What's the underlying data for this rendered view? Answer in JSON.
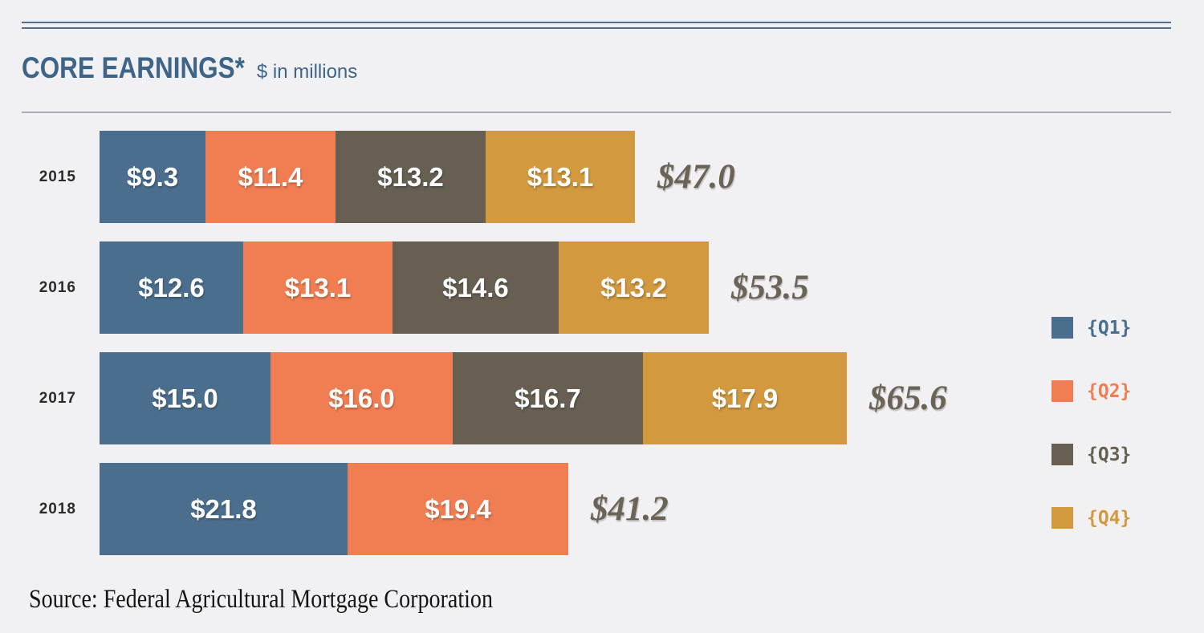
{
  "header": {
    "title": "CORE EARNINGS*",
    "subtitle": "$ in millions",
    "title_color": "#3e6487"
  },
  "chart_data": {
    "type": "bar",
    "variant": "horizontal-stacked",
    "title": "CORE EARNINGS*",
    "unit": "$ in millions",
    "value_prefix": "$",
    "categories": [
      "2015",
      "2016",
      "2017",
      "2018"
    ],
    "series": [
      {
        "name": "Q1",
        "color": "#4b6e8e",
        "values": [
          9.3,
          12.6,
          15.0,
          21.8
        ]
      },
      {
        "name": "Q2",
        "color": "#f07e52",
        "values": [
          11.4,
          13.1,
          16.0,
          19.4
        ]
      },
      {
        "name": "Q3",
        "color": "#665f52",
        "values": [
          13.2,
          14.6,
          16.7,
          null
        ]
      },
      {
        "name": "Q4",
        "color": "#d2993f",
        "values": [
          13.1,
          13.2,
          17.9,
          null
        ]
      }
    ],
    "totals": [
      47.0,
      53.5,
      65.6,
      41.2
    ],
    "total_label_color": "#6b6355",
    "segment_text_color": "#ffffff",
    "legend_position": "right",
    "axes": "none"
  },
  "legend": {
    "items": [
      {
        "label": "{Q1}",
        "color": "#4b6e8e"
      },
      {
        "label": "{Q2}",
        "color": "#f07e52"
      },
      {
        "label": "{Q3}",
        "color": "#665f52"
      },
      {
        "label": "{Q4}",
        "color": "#d2993f"
      }
    ]
  },
  "footer": {
    "source": "Source: Federal Agricultural Mortgage Corporation"
  }
}
